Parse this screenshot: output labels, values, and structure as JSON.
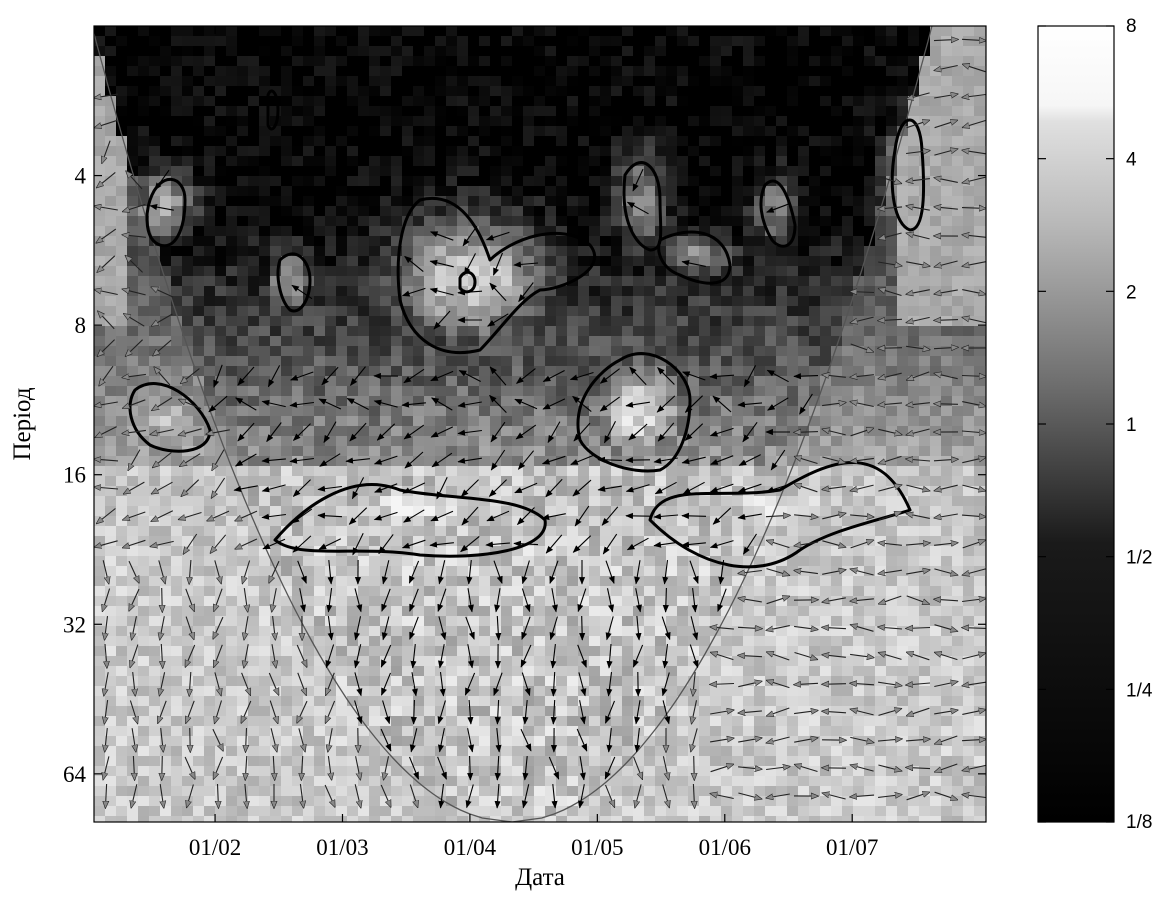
{
  "chart_data": {
    "type": "heatmap",
    "subtype": "wavelet-coherence",
    "xlabel": "Дата",
    "ylabel": "Період",
    "x_ticks": [
      "01/02",
      "01/03",
      "01/04",
      "01/05",
      "01/06",
      "01/07"
    ],
    "y_ticks": [
      "4",
      "8",
      "16",
      "32",
      "64"
    ],
    "y_tick_values": [
      4,
      8,
      16,
      32,
      64
    ],
    "y_scale": "log2",
    "y_inverted": true,
    "y_range": [
      2,
      80
    ],
    "x_range_months": [
      1.05,
      8.05
    ],
    "x_tick_months": [
      2,
      3,
      4,
      5,
      6,
      7
    ],
    "colorbar": {
      "ticks": [
        "8",
        "4",
        "2",
        "1",
        "1/2",
        "1/4",
        "1/8"
      ],
      "tick_values": [
        8,
        4,
        2,
        1,
        0.5,
        0.25,
        0.125
      ],
      "scale": "log2",
      "colormap": "grayscale",
      "low_color": "#000000",
      "high_color": "#ffffff"
    },
    "cone_of_influence": true,
    "phase_arrows": true,
    "significance_contours": 13,
    "grid": false,
    "legend": "none"
  }
}
